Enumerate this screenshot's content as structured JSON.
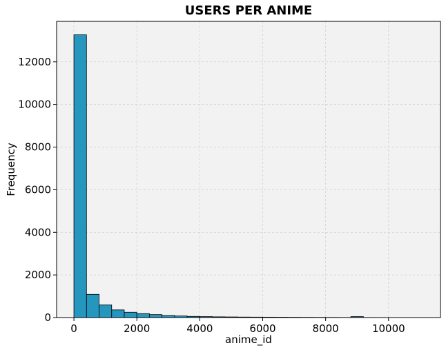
{
  "chart_data": {
    "type": "bar",
    "title": "USERS PER ANIME",
    "xlabel": "anime_id",
    "ylabel": "Frequency",
    "xlim": [
      -550,
      11650
    ],
    "ylim": [
      0,
      13900
    ],
    "xticks": [
      0,
      2000,
      4000,
      6000,
      8000,
      10000
    ],
    "yticks": [
      0,
      2000,
      4000,
      6000,
      8000,
      10000,
      12000
    ],
    "grid": true,
    "bar_color": "#2596be",
    "plot_background": "#f2f2f2",
    "bin_width": 400,
    "bin_starts": [
      0,
      400,
      800,
      1200,
      1600,
      2000,
      2400,
      2800,
      3200,
      3600,
      4000,
      4400,
      4800,
      5200,
      5600,
      6000,
      6400,
      6800,
      7200,
      7600,
      8000,
      8400,
      8800,
      9200,
      9600,
      10000,
      10400,
      10800
    ],
    "values": [
      13270,
      1090,
      590,
      360,
      250,
      185,
      140,
      100,
      75,
      55,
      45,
      35,
      30,
      25,
      22,
      20,
      18,
      15,
      12,
      10,
      8,
      6,
      45,
      5,
      4,
      3,
      3,
      2
    ]
  }
}
